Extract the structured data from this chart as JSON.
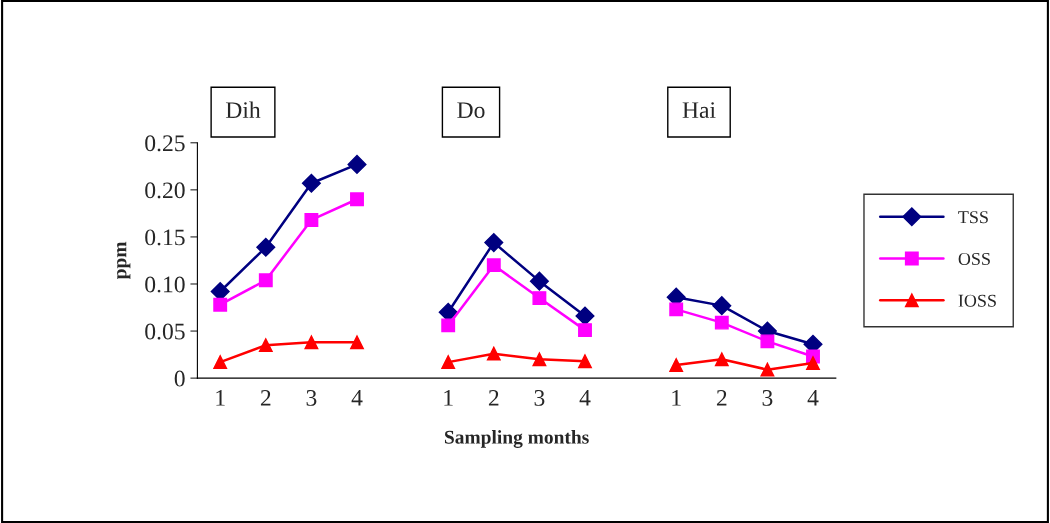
{
  "chart_data": {
    "type": "line",
    "xlabel": "Sampling months",
    "ylabel": "ppm",
    "categories": [
      "1",
      "2",
      "3",
      "4",
      null,
      "1",
      "2",
      "3",
      "4",
      null,
      "1",
      "2",
      "3",
      "4"
    ],
    "series": [
      {
        "name": "TSS",
        "color": "#000080",
        "marker": "diamond",
        "values": [
          0.092,
          0.139,
          0.207,
          0.227,
          null,
          0.07,
          0.144,
          0.103,
          0.066,
          null,
          0.086,
          0.077,
          0.05,
          0.036
        ]
      },
      {
        "name": "OSS",
        "color": "#ff00ff",
        "marker": "square",
        "values": [
          0.078,
          0.104,
          0.168,
          0.19,
          null,
          0.056,
          0.12,
          0.085,
          0.051,
          null,
          0.073,
          0.059,
          0.039,
          0.023
        ]
      },
      {
        "name": "IOSS",
        "color": "#ff0000",
        "marker": "triangle",
        "values": [
          0.017,
          0.035,
          0.038,
          0.038,
          null,
          0.017,
          0.026,
          0.02,
          0.018,
          null,
          0.014,
          0.02,
          0.009,
          0.016
        ]
      }
    ],
    "ylim": [
      0,
      0.25
    ],
    "yticks": [
      0,
      {
        "value": 0.05,
        "label": "0.05"
      },
      {
        "value": 0.1,
        "label": "0.10"
      },
      {
        "value": 0.15,
        "label": "0.15"
      },
      {
        "value": 0.2,
        "label": "0.20"
      },
      {
        "value": 0.25,
        "label": "0.25"
      }
    ],
    "annotations": [
      "Dih",
      "Do",
      "Hai"
    ],
    "legend": "right",
    "grid": false
  }
}
